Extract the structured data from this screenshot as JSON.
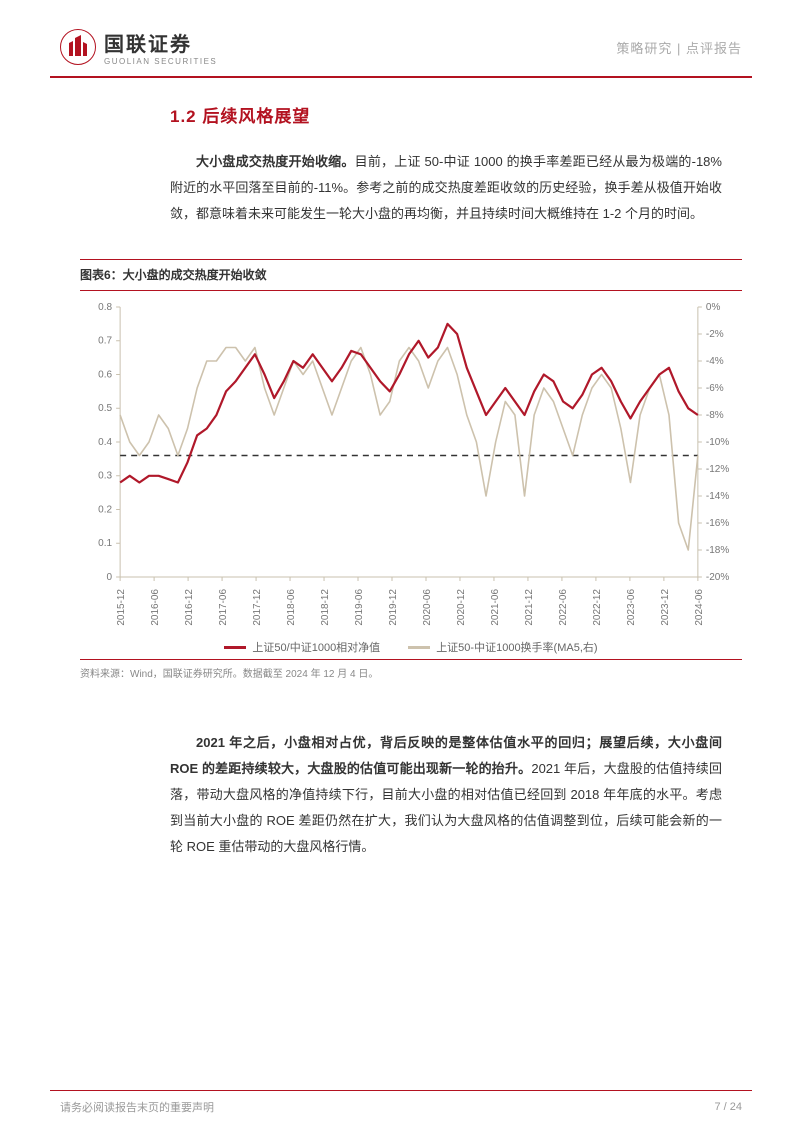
{
  "header": {
    "company_cn": "国联证券",
    "company_en": "GUOLIAN SECURITIES",
    "breadcrumb": "策略研究 | 点评报告",
    "logo_accent": "#b31220"
  },
  "section": {
    "number": "1.2",
    "title": "后续风格展望",
    "title_color": "#b31220"
  },
  "para1_bold": "大小盘成交热度开始收缩。",
  "para1_rest": "目前，上证 50-中证 1000 的换手率差距已经从最为极端的-18%附近的水平回落至目前的-11%。参考之前的成交热度差距收敛的历史经验，换手差从极值开始收敛，都意味着未来可能发生一轮大小盘的再均衡，并且持续时间大概维持在 1-2 个月的时间。",
  "figure": {
    "label": "图表6：大小盘的成交热度开始收敛",
    "source": "资料来源：Wind，国联证券研究所。数据截至 2024 年 12 月 4 日。",
    "x_labels": [
      "2015-12",
      "2016-06",
      "2016-12",
      "2017-06",
      "2017-12",
      "2018-06",
      "2018-12",
      "2019-06",
      "2019-12",
      "2020-06",
      "2020-12",
      "2021-06",
      "2021-12",
      "2022-06",
      "2022-12",
      "2023-06",
      "2023-12",
      "2024-06"
    ],
    "y_left": {
      "min": 0,
      "max": 0.8,
      "step": 0.1,
      "ticks": [
        0,
        0.1,
        0.2,
        0.3,
        0.4,
        0.5,
        0.6,
        0.7,
        0.8
      ]
    },
    "y_right": {
      "min": -20,
      "max": 0,
      "step": 2,
      "ticks": [
        "0%",
        "-2%",
        "-4%",
        "-6%",
        "-8%",
        "-10%",
        "-12%",
        "-14%",
        "-16%",
        "-18%",
        "-20%"
      ]
    },
    "ref_line_left_value": 0.36,
    "series1": {
      "name": "上证50/中证1000相对净值",
      "color": "#b0182a",
      "line_width": 2.2,
      "data_left": [
        0.28,
        0.3,
        0.28,
        0.3,
        0.3,
        0.29,
        0.28,
        0.34,
        0.42,
        0.44,
        0.48,
        0.55,
        0.58,
        0.62,
        0.66,
        0.6,
        0.53,
        0.58,
        0.64,
        0.62,
        0.66,
        0.62,
        0.58,
        0.62,
        0.67,
        0.66,
        0.62,
        0.58,
        0.55,
        0.6,
        0.66,
        0.7,
        0.65,
        0.68,
        0.75,
        0.72,
        0.62,
        0.55,
        0.48,
        0.52,
        0.56,
        0.52,
        0.48,
        0.55,
        0.6,
        0.58,
        0.52,
        0.5,
        0.54,
        0.6,
        0.62,
        0.58,
        0.52,
        0.47,
        0.52,
        0.56,
        0.6,
        0.62,
        0.55,
        0.5,
        0.48
      ]
    },
    "series2": {
      "name": "上证50-中证1000换手率(MA5,右)",
      "color": "#cdc2ad",
      "line_width": 1.6,
      "data_right_pct": [
        -8,
        -10,
        -11,
        -10,
        -8,
        -9,
        -11,
        -9,
        -6,
        -4,
        -4,
        -3,
        -3,
        -4,
        -3,
        -6,
        -8,
        -6,
        -4,
        -5,
        -4,
        -6,
        -8,
        -6,
        -4,
        -3,
        -5,
        -8,
        -7,
        -4,
        -3,
        -4,
        -6,
        -4,
        -3,
        -5,
        -8,
        -10,
        -14,
        -10,
        -7,
        -8,
        -14,
        -8,
        -6,
        -7,
        -9,
        -11,
        -8,
        -6,
        -5,
        -6,
        -9,
        -13,
        -8,
        -6,
        -5,
        -8,
        -16,
        -18,
        -11
      ]
    },
    "background_color": "#ffffff",
    "axis_color": "#c9c1af",
    "tick_font_size": 10,
    "ref_line_dash": "6,5"
  },
  "para2_bold": "2021 年之后，小盘相对占优，背后反映的是整体估值水平的回归；展望后续，大小盘间 ROE 的差距持续较大，大盘股的估值可能出现新一轮的抬升。",
  "para2_rest": "2021 年后，大盘股的估值持续回落，带动大盘风格的净值持续下行，目前大小盘的相对估值已经回到 2018 年年底的水平。考虑到当前大小盘的 ROE 差距仍然在扩大，我们认为大盘风格的估值调整到位，后续可能会新的一轮 ROE 重估带动的大盘风格行情。",
  "footer": {
    "disclaimer": "请务必阅读报告末页的重要声明",
    "page": "7 / 24"
  }
}
